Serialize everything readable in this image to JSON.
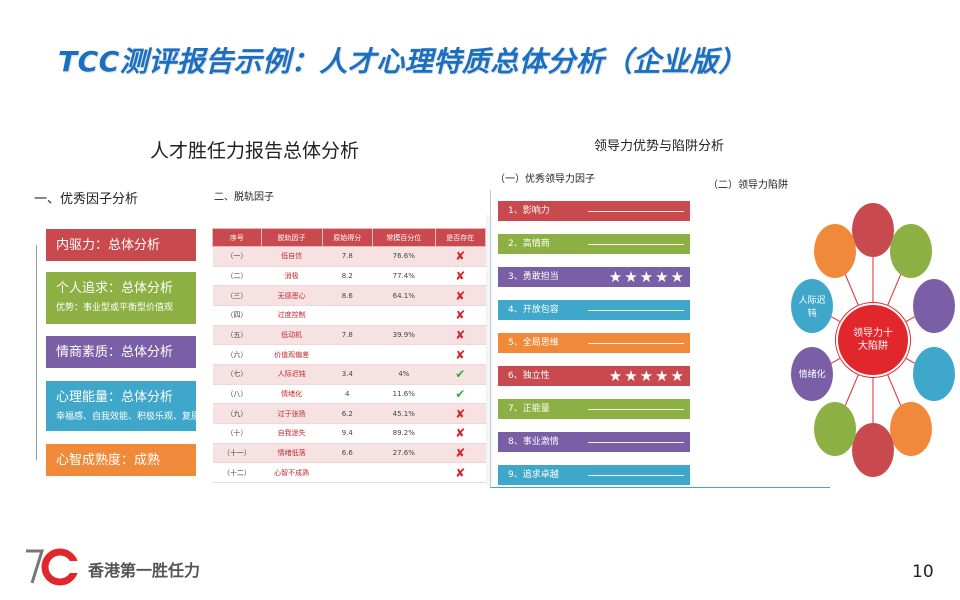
{
  "title": "TCC测评报告示例：人才心理特质总体分析（企业版）",
  "left_report": {
    "heading": "人才胜任力报告总体分析",
    "section_title": "一、优秀因子分析",
    "factors": [
      {
        "title": "内驱力：总体分析",
        "desc": "",
        "color": "#c94a4e"
      },
      {
        "title": "个人追求：总体分析",
        "desc": "优势：事业型或平衡型价值观",
        "color": "#8cb043"
      },
      {
        "title": "情商素质：总体分析",
        "desc": "",
        "color": "#7a5fa6"
      },
      {
        "title": "心理能量：总体分析",
        "desc": "幸福感、自我效能、积极乐观、复原力",
        "color": "#3fa7c9"
      },
      {
        "title": "心智成熟度：成熟",
        "desc": "",
        "color": "#f08a3a"
      }
    ]
  },
  "derail": {
    "section_title": "二、脱轨因子",
    "headers": [
      "序号",
      "脱轨因子",
      "原始得分",
      "常模百分位",
      "是否存在"
    ],
    "rows": [
      {
        "no": "（一）",
        "name": "低自信",
        "raw": "7.8",
        "pct": "76.6%",
        "mark": "x"
      },
      {
        "no": "（二）",
        "name": "消极",
        "raw": "8.2",
        "pct": "77.4%",
        "mark": "x"
      },
      {
        "no": "（三）",
        "name": "无感恩心",
        "raw": "8.6",
        "pct": "64.1%",
        "mark": "x"
      },
      {
        "no": "（四）",
        "name": "过度控制",
        "raw": "",
        "pct": "",
        "mark": "x"
      },
      {
        "no": "（五）",
        "name": "低动机",
        "raw": "7.8",
        "pct": "39.9%",
        "mark": "x"
      },
      {
        "no": "（六）",
        "name": "价值观偏差",
        "raw": "",
        "pct": "",
        "mark": "x"
      },
      {
        "no": "（七）",
        "name": "人际迟钝",
        "raw": "3.4",
        "pct": "4%",
        "mark": "check"
      },
      {
        "no": "（八）",
        "name": "情绪化",
        "raw": "4",
        "pct": "11.6%",
        "mark": "check"
      },
      {
        "no": "（九）",
        "name": "过于张扬",
        "raw": "6.2",
        "pct": "45.1%",
        "mark": "x"
      },
      {
        "no": "（十）",
        "name": "自我迷失",
        "raw": "9.4",
        "pct": "89.2%",
        "mark": "x"
      },
      {
        "no": "（十一）",
        "name": "情绪低落",
        "raw": "6.6",
        "pct": "27.6%",
        "mark": "x"
      },
      {
        "no": "（十二）",
        "name": "心智不成熟",
        "raw": "",
        "pct": "",
        "mark": "x"
      }
    ]
  },
  "leadership": {
    "heading": "领导力优势与陷阱分析",
    "section1": "（一）优秀领导力因子",
    "section2": "（二）领导力陷阱",
    "factors": [
      {
        "label": "1、影响力",
        "color": "#c94a4e",
        "stars": ""
      },
      {
        "label": "2、高情商",
        "color": "#8cb043",
        "stars": ""
      },
      {
        "label": "3、勇敢担当",
        "color": "#7a5fa6",
        "stars": "★★★★★"
      },
      {
        "label": "4、开放包容",
        "color": "#3fa7c9",
        "stars": ""
      },
      {
        "label": "5、全局思维",
        "color": "#f08a3a",
        "stars": ""
      },
      {
        "label": "6、独立性",
        "color": "#c94a4e",
        "stars": "★★★★★"
      },
      {
        "label": "7、正能量",
        "color": "#8cb043",
        "stars": ""
      },
      {
        "label": "8、事业激情",
        "color": "#7a5fa6",
        "stars": ""
      },
      {
        "label": "9、追求卓越",
        "color": "#3fa7c9",
        "stars": ""
      }
    ],
    "center_label": "领导力十大陷阱",
    "traps": [
      {
        "label": "",
        "color": "#c94a4e"
      },
      {
        "label": "",
        "color": "#8cb043"
      },
      {
        "label": "",
        "color": "#7a5fa6"
      },
      {
        "label": "",
        "color": "#3fa7c9"
      },
      {
        "label": "",
        "color": "#f08a3a"
      },
      {
        "label": "",
        "color": "#c94a4e"
      },
      {
        "label": "",
        "color": "#8cb043"
      },
      {
        "label": "情绪化",
        "color": "#7a5fa6"
      },
      {
        "label": "人际迟钝",
        "color": "#3fa7c9"
      },
      {
        "label": "",
        "color": "#f08a3a"
      }
    ]
  },
  "footer": {
    "logo_text": "香港第一胜任力",
    "page_number": "10"
  }
}
